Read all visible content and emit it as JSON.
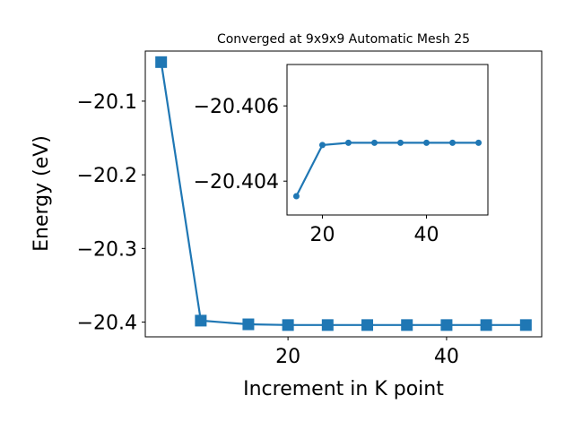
{
  "chart_data": [
    {
      "type": "line",
      "title": "Converged at 9x9x9 Automatic Mesh 25",
      "xlabel": "Increment in K point",
      "ylabel": "Energy (eV)",
      "x": [
        4,
        9,
        15,
        20,
        25,
        30,
        35,
        40,
        45,
        50
      ],
      "series": [
        {
          "values": [
            -20.047,
            -20.398,
            -20.403,
            -20.404,
            -20.404,
            -20.404,
            -20.404,
            -20.404,
            -20.404,
            -20.404
          ]
        }
      ],
      "xlim": [
        2,
        52
      ],
      "ylim": [
        -20.42,
        -20.032
      ],
      "xticks": [
        20,
        40
      ],
      "yticks": [
        -20.1,
        -20.2,
        -20.3,
        -20.4
      ],
      "xtick_labels": [
        "20",
        "40"
      ],
      "ytick_labels": [
        "−20.1",
        "−20.2",
        "−20.3",
        "−20.4"
      ],
      "marker": "square",
      "color": "#1f77b4",
      "grid": false
    },
    {
      "type": "line",
      "x": [
        15,
        20,
        25,
        30,
        35,
        40,
        45,
        50
      ],
      "series": [
        {
          "values": [
            -20.4036,
            -20.40496,
            -20.40502,
            -20.40502,
            -20.40502,
            -20.40502,
            -20.40502,
            -20.40502
          ]
        }
      ],
      "xlim": [
        13.2,
        51.8
      ],
      "ylim": [
        -20.4031,
        -20.4071
      ],
      "xticks": [
        20,
        40
      ],
      "yticks": [
        -20.406,
        -20.404
      ],
      "xtick_labels": [
        "20",
        "40"
      ],
      "ytick_labels": [
        "−20.406",
        "−20.404"
      ],
      "marker": "circle",
      "color": "#1f77b4",
      "grid": false
    }
  ]
}
